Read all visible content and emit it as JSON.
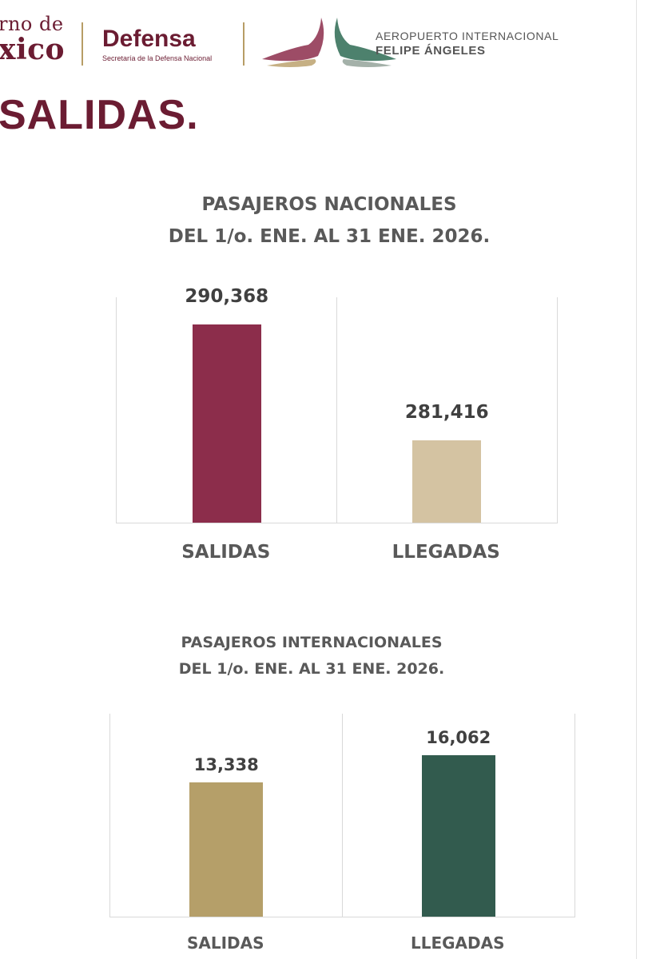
{
  "header": {
    "gobierno_line1": "rno de",
    "gobierno_line2": "xico",
    "defensa_title": "Defensa",
    "defensa_subtitle": "Secretaría de la Defensa Nacional",
    "aifa_line1": "AEROPUERTO INTERNACIONAL",
    "aifa_line2": "FELIPE ÁNGELES"
  },
  "page_heading": "SALIDAS.",
  "colors": {
    "brand_guinda": "#6b1c32",
    "gold": "#b79d66",
    "aifa_green": "#2e6b54"
  },
  "chart_data": [
    {
      "type": "bar",
      "title_line1": "PASAJEROS NACIONALES",
      "title_line2": "DEL  1/o. ENE. AL 31 ENE. 2026.",
      "categories": [
        "SALIDAS",
        "LLEGADAS"
      ],
      "values": [
        290368,
        281416
      ],
      "value_labels": [
        "290,368",
        "281,416"
      ],
      "bar_colors": [
        "#8c2d4b",
        "#d4c3a2"
      ],
      "ylim": [
        275000,
        292500
      ],
      "grid": false,
      "legend": "none"
    },
    {
      "type": "bar",
      "title_line1": "PASAJEROS INTERNACIONALES",
      "title_line2": "DEL  1/o. ENE. AL 31 ENE. 2026.",
      "categories": [
        "SALIDAS",
        "LLEGADAS"
      ],
      "values": [
        13338,
        16062
      ],
      "value_labels": [
        "13,338",
        "16,062"
      ],
      "bar_colors": [
        "#b59f69",
        "#325b4e"
      ],
      "ylim": [
        0,
        20200
      ],
      "grid": false,
      "legend": "none"
    }
  ]
}
